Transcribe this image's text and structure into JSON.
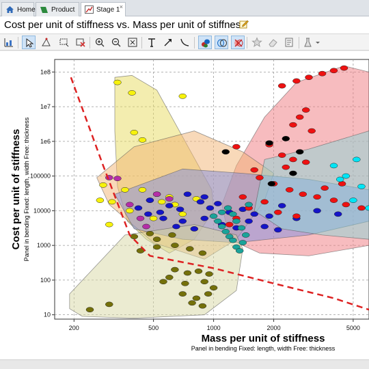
{
  "tabs": [
    {
      "label": "Home",
      "icon": "home-icon"
    },
    {
      "label": "Product",
      "icon": "product-icon"
    },
    {
      "label": "Stage 1",
      "icon": "stage-icon",
      "close": "×"
    }
  ],
  "chart_title": "Cost per unit of stiffness vs. Mass per unit of stiffness",
  "toolbar_icons": [
    "chart-settings-icon",
    "select-pointer-icon",
    "envelope-tool-icon",
    "box-select-icon",
    "delete-selection-icon",
    "zoom-in-icon",
    "zoom-out-icon",
    "fit-view-icon",
    "text-tool-icon",
    "arrow-tool-icon",
    "curve-tool-icon",
    "show-bubbles-icon",
    "show-envelopes-icon",
    "hide-failed-icon",
    "favorite-icon",
    "eraser-icon",
    "notes-icon",
    "lab-tools-icon"
  ],
  "chart_data": {
    "type": "scatter",
    "title": "Cost per unit of stiffness vs. Mass per unit of stiffness",
    "xlabel": "Mass per unit of stiffness",
    "xlabel_sub": "Panel in bending   Fixed: length, width   Free: thickness",
    "ylabel": "Cost per unit of stiffness",
    "ylabel_sub": "Panel in bending   Fixed: length, width   Free: thickness",
    "x_scale": "log",
    "y_scale": "log",
    "xlim": [
      160,
      6000
    ],
    "ylim": [
      7.5,
      230000000.0
    ],
    "x_ticks": [
      {
        "v": 200,
        "label": "200"
      },
      {
        "v": 500,
        "label": "500"
      },
      {
        "v": 1000,
        "label": "1000"
      },
      {
        "v": 2000,
        "label": "2000"
      },
      {
        "v": 5000,
        "label": "5000"
      }
    ],
    "y_ticks": [
      {
        "v": 10,
        "label": "10"
      },
      {
        "v": 100,
        "label": "100"
      },
      {
        "v": 1000,
        "label": "1000"
      },
      {
        "v": 10000,
        "label": "10000"
      },
      {
        "v": 100000,
        "label": "100000"
      },
      {
        "v": 1000000,
        "label": "1e6"
      },
      {
        "v": 10000000,
        "label": "1e7"
      },
      {
        "v": 100000000,
        "label": "1e8"
      }
    ],
    "grid": true,
    "legend": "none",
    "selection_line": {
      "color": "#dd2222",
      "style": "dashed",
      "points": [
        [
          193,
          70000000
        ],
        [
          280,
          200000
        ],
        [
          380,
          2000
        ],
        [
          480,
          500
        ],
        [
          1000,
          220
        ],
        [
          2000,
          80
        ],
        [
          4000,
          30
        ],
        [
          6000,
          14
        ]
      ]
    },
    "envelopes": [
      {
        "color": "#e8dc60",
        "points": [
          [
            320,
            70000000
          ],
          [
            390,
            80000000
          ],
          [
            520,
            30000000
          ],
          [
            720,
            1000000
          ],
          [
            980,
            40000
          ],
          [
            1000,
            10000
          ],
          [
            800,
            1500
          ],
          [
            600,
            600
          ],
          [
            460,
            1500
          ],
          [
            370,
            5000
          ],
          [
            330,
            50000
          ],
          [
            320,
            2000000
          ]
        ]
      },
      {
        "color": "#ef7a80",
        "points": [
          [
            1300,
            200000
          ],
          [
            1800,
            5000000
          ],
          [
            2600,
            50000000
          ],
          [
            4500,
            150000000
          ],
          [
            6000,
            100000000
          ],
          [
            6000,
            1000
          ],
          [
            3000,
            500
          ],
          [
            1700,
            600
          ],
          [
            1200,
            1500
          ],
          [
            1100,
            15000
          ]
        ]
      },
      {
        "color": "#f2b474",
        "points": [
          [
            260,
            90000
          ],
          [
            400,
            700000
          ],
          [
            800,
            2000000
          ],
          [
            1400,
            500000
          ],
          [
            2000,
            120000
          ],
          [
            1800,
            20000
          ],
          [
            1300,
            1500
          ],
          [
            900,
            400
          ],
          [
            500,
            1200
          ],
          [
            300,
            15000
          ]
        ]
      },
      {
        "color": "#7f8ee0",
        "points": [
          [
            320,
            30000
          ],
          [
            700,
            160000
          ],
          [
            1400,
            120000
          ],
          [
            3000,
            80000
          ],
          [
            6000,
            40000
          ],
          [
            6000,
            5000
          ],
          [
            3000,
            2000
          ],
          [
            1300,
            1200
          ],
          [
            700,
            1500
          ],
          [
            400,
            3000
          ]
        ]
      },
      {
        "color": "#8ad6d8",
        "points": [
          [
            1800,
            300000
          ],
          [
            3000,
            600000
          ],
          [
            6000,
            2000000
          ],
          [
            6000,
            1500
          ],
          [
            3500,
            2000
          ],
          [
            2200,
            3000
          ],
          [
            1600,
            10000
          ]
        ]
      },
      {
        "color": "#d8d8a4",
        "points": [
          [
            190,
            15
          ],
          [
            190,
            40
          ],
          [
            360,
            2000
          ],
          [
            800,
            4000
          ],
          [
            1300,
            2000
          ],
          [
            1400,
            800
          ],
          [
            1300,
            50
          ],
          [
            900,
            10
          ],
          [
            400,
            8
          ],
          [
            220,
            9
          ]
        ]
      }
    ],
    "series": [
      {
        "color": "#f7f20c",
        "points": [
          [
            330,
            50000000
          ],
          [
            390,
            25000000
          ],
          [
            400,
            1800000
          ],
          [
            440,
            1100000
          ],
          [
            700,
            20000000
          ],
          [
            280,
            55000
          ],
          [
            360,
            40000
          ],
          [
            440,
            40000
          ],
          [
            480,
            20000
          ],
          [
            550,
            18000
          ],
          [
            640,
            15000
          ],
          [
            270,
            20000
          ],
          [
            310,
            18000
          ],
          [
            380,
            10000
          ],
          [
            700,
            8000
          ],
          [
            820,
            22000
          ],
          [
            300,
            4000
          ],
          [
            600,
            25000
          ],
          [
            500,
            6000
          ]
        ]
      },
      {
        "color": "#1414c8",
        "points": [
          [
            420,
            12000
          ],
          [
            480,
            20000
          ],
          [
            540,
            9000
          ],
          [
            600,
            14000
          ],
          [
            680,
            11000
          ],
          [
            740,
            30000
          ],
          [
            860,
            18000
          ],
          [
            960,
            12000
          ],
          [
            1050,
            16000
          ],
          [
            1200,
            9000
          ],
          [
            1400,
            11000
          ],
          [
            1600,
            8000
          ],
          [
            1900,
            7000
          ],
          [
            2200,
            14000
          ],
          [
            2600,
            6000
          ],
          [
            3300,
            10000
          ],
          [
            4200,
            8000
          ],
          [
            560,
            6000
          ],
          [
            700,
            5000
          ],
          [
            650,
            3500
          ],
          [
            800,
            3000
          ],
          [
            900,
            6000
          ],
          [
            1100,
            4000
          ],
          [
            1300,
            3200
          ],
          [
            1500,
            5000
          ],
          [
            1800,
            3500
          ],
          [
            2100,
            2800
          ],
          [
            470,
            8000
          ],
          [
            520,
            30000
          ],
          [
            900,
            25000
          ]
        ]
      },
      {
        "color": "#ee1111",
        "points": [
          [
            2200,
            40000000
          ],
          [
            2600,
            55000000
          ],
          [
            3000,
            70000000
          ],
          [
            3500,
            90000000
          ],
          [
            4000,
            110000000
          ],
          [
            4500,
            130000000
          ],
          [
            2500,
            3000000
          ],
          [
            2700,
            5000000
          ],
          [
            2900,
            8000000
          ],
          [
            3100,
            2000000
          ],
          [
            1900,
            800000
          ],
          [
            2200,
            400000
          ],
          [
            2500,
            300000
          ],
          [
            2300,
            180000
          ],
          [
            2900,
            250000
          ],
          [
            1600,
            150000
          ],
          [
            1700,
            90000
          ],
          [
            2000,
            60000
          ],
          [
            2400,
            40000
          ],
          [
            2800,
            30000
          ],
          [
            3300,
            25000
          ],
          [
            4000,
            20000
          ],
          [
            4600,
            15000
          ],
          [
            5500,
            12000
          ],
          [
            1400,
            25000
          ],
          [
            1500,
            12000
          ],
          [
            1800,
            18000
          ],
          [
            2100,
            9000
          ],
          [
            2600,
            7000
          ],
          [
            1300,
            6000
          ],
          [
            1200,
            4000
          ],
          [
            3600,
            45000
          ],
          [
            4400,
            60000
          ],
          [
            1300,
            700000
          ]
        ]
      },
      {
        "color": "#1aa39a",
        "points": [
          [
            1000,
            7000
          ],
          [
            1050,
            5000
          ],
          [
            1100,
            3500
          ],
          [
            1150,
            2500
          ],
          [
            1200,
            1800
          ],
          [
            1250,
            1400
          ],
          [
            1300,
            900
          ],
          [
            1350,
            700
          ],
          [
            1100,
            9000
          ],
          [
            1180,
            12000
          ],
          [
            1250,
            8000
          ],
          [
            1300,
            5000
          ],
          [
            1380,
            3200
          ],
          [
            1450,
            2000
          ],
          [
            1400,
            1200
          ],
          [
            1500,
            15000
          ]
        ]
      },
      {
        "color": "#b52ea8",
        "points": [
          [
            300,
            90000
          ],
          [
            330,
            85000
          ],
          [
            430,
            6000
          ],
          [
            460,
            3500
          ],
          [
            380,
            15000
          ],
          [
            520,
            30000
          ],
          [
            600,
            22000
          ]
        ]
      },
      {
        "color": "#74700a",
        "points": [
          [
            240,
            14
          ],
          [
            430,
            700
          ],
          [
            520,
            900
          ],
          [
            640,
            1000
          ],
          [
            760,
            800
          ],
          [
            880,
            600
          ],
          [
            640,
            200
          ],
          [
            740,
            160
          ],
          [
            840,
            180
          ],
          [
            950,
            150
          ],
          [
            600,
            120
          ],
          [
            560,
            90
          ],
          [
            720,
            80
          ],
          [
            900,
            90
          ],
          [
            1000,
            60
          ],
          [
            700,
            40
          ],
          [
            820,
            30
          ],
          [
            940,
            40
          ],
          [
            780,
            22
          ],
          [
            880,
            18
          ],
          [
            400,
            1800
          ],
          [
            520,
            1500
          ],
          [
            620,
            2000
          ],
          [
            480,
            2200
          ],
          [
            300,
            20
          ]
        ]
      },
      {
        "color": "#00e5f5",
        "points": [
          [
            4000,
            200000
          ],
          [
            5200,
            300000
          ],
          [
            4300,
            80000
          ],
          [
            5500,
            50000
          ],
          [
            5000,
            20000
          ],
          [
            6000,
            12000
          ],
          [
            4600,
            100000
          ]
        ]
      },
      {
        "color": "#000000",
        "points": [
          [
            1150,
            500000
          ],
          [
            1900,
            900000
          ],
          [
            2300,
            1200000
          ],
          [
            2700,
            500000
          ],
          [
            2500,
            120000
          ],
          [
            1950,
            60000
          ]
        ]
      }
    ]
  }
}
